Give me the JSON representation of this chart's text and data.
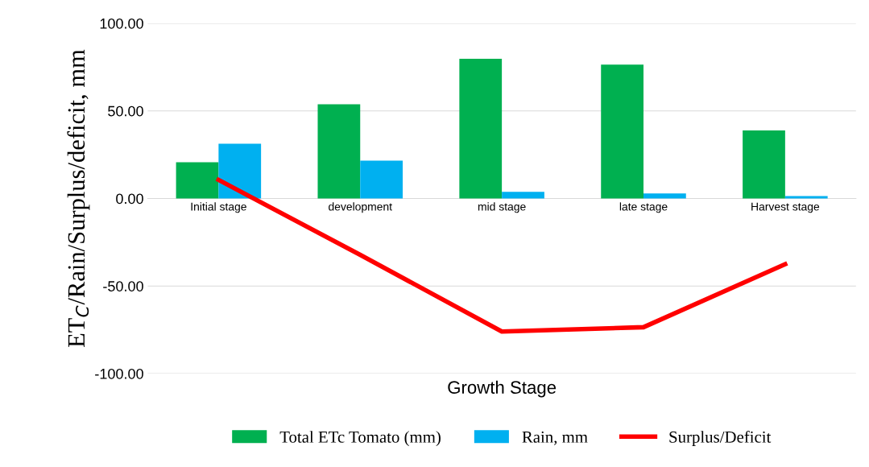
{
  "chart_data": {
    "type": "bar",
    "xlabel": "Growth Stage",
    "ylabel": "ET$_{C}$/Rain/Surplus/deficit, mm",
    "categories": [
      "Initial stage",
      "development",
      "mid stage",
      "late stage",
      "Harvest stage"
    ],
    "series": [
      {
        "name": "Total ETc Tomato (mm)",
        "color": "#00b050",
        "values": [
          20.7,
          53.8,
          79.8,
          76.4,
          38.9
        ]
      },
      {
        "name": "Rain, mm",
        "color": "#00b0f0",
        "values": [
          31.3,
          21.6,
          3.8,
          2.9,
          1.4
        ]
      },
      {
        "name": "Surplus/Deficit",
        "type": "line",
        "color": "#ff0000",
        "values": [
          10.6,
          -32.2,
          -76.0,
          -73.5,
          -37.5
        ]
      }
    ],
    "ylim": [
      -100,
      100
    ],
    "yticks": [
      {
        "value": -100,
        "label": "-100.00"
      },
      {
        "value": -50,
        "label": "-50.00"
      },
      {
        "value": 0,
        "label": "0.00"
      },
      {
        "value": 50,
        "label": "50.00"
      },
      {
        "value": 100,
        "label": "100.00"
      }
    ],
    "grid": "y",
    "legend": "bottom",
    "marker": "none",
    "line_style": "solid"
  }
}
